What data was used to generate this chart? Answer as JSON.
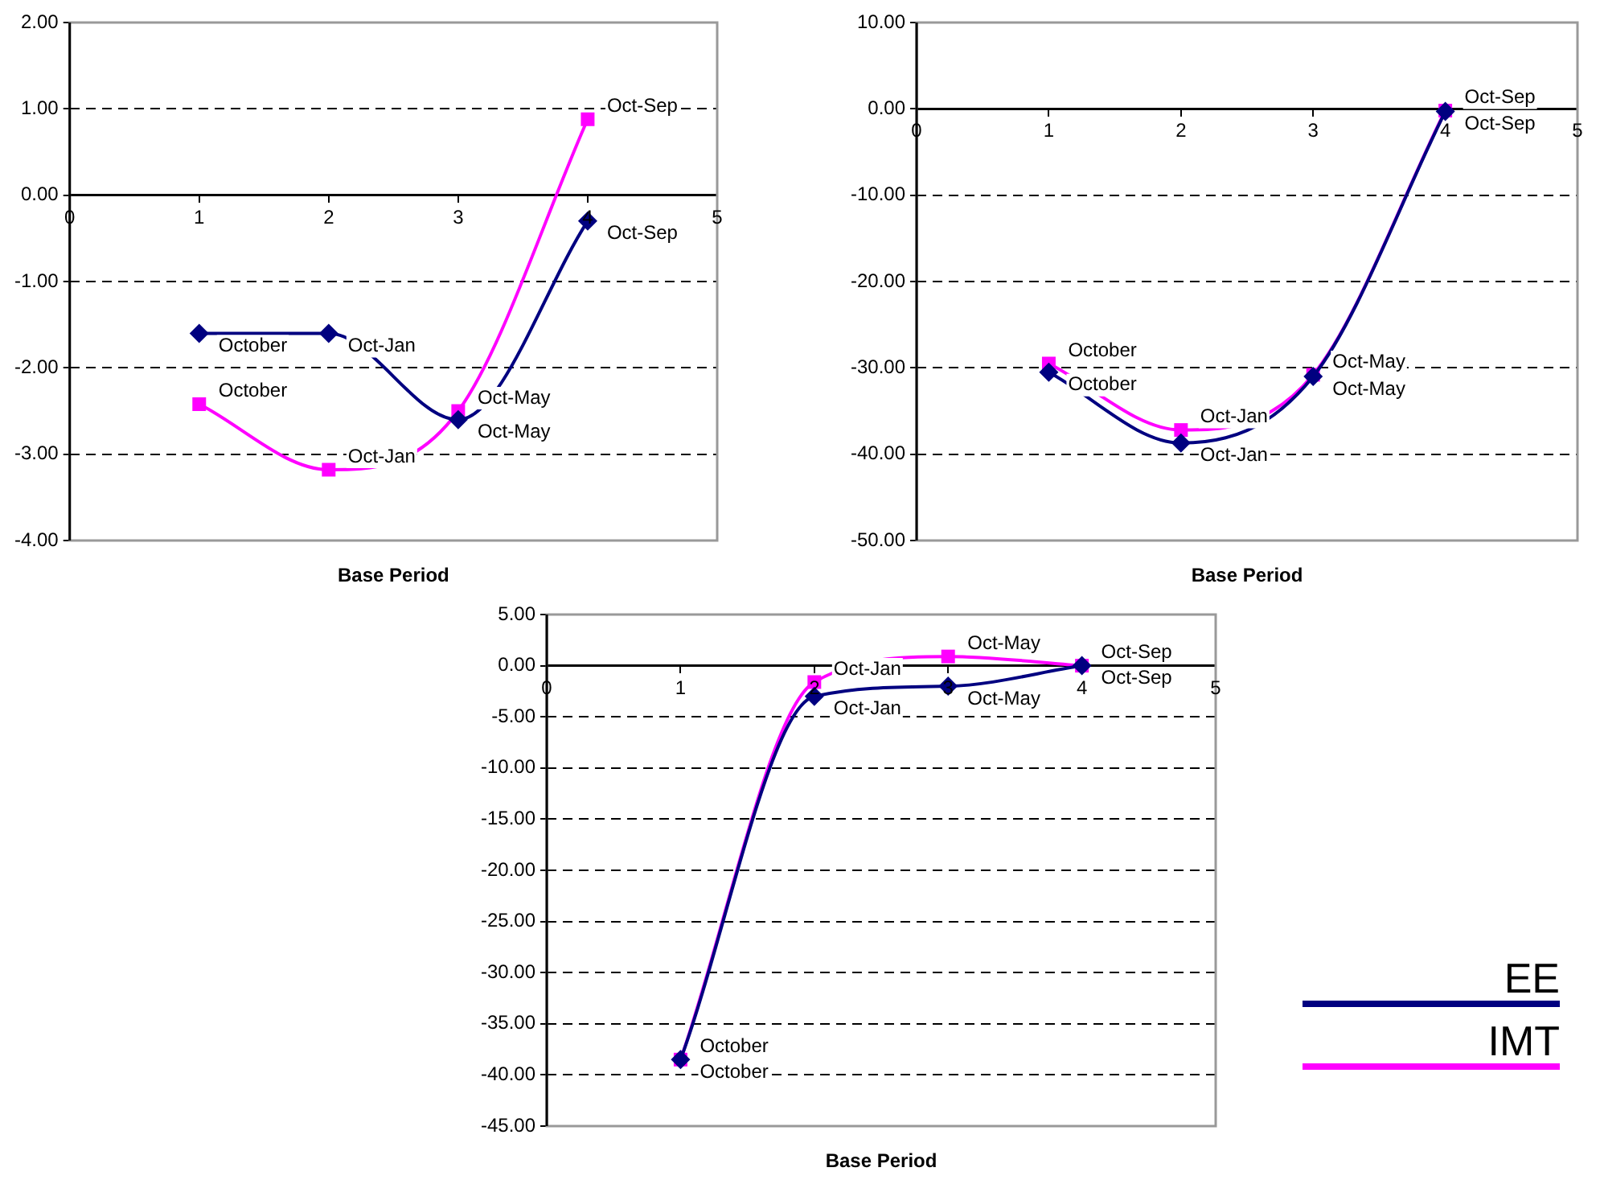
{
  "chart_data": [
    {
      "type": "line",
      "xlabel": "Base Period",
      "x": [
        1,
        2,
        3,
        4
      ],
      "xlim": [
        0,
        5
      ],
      "xticks": [
        0,
        1,
        2,
        3,
        4,
        5
      ],
      "ylim": [
        -4,
        2
      ],
      "yticks": [
        {
          "value": -4,
          "label": "-4.00"
        },
        {
          "value": -3,
          "label": "-3.00"
        },
        {
          "value": -2,
          "label": "-2.00"
        },
        {
          "value": -1,
          "label": "-1.00"
        },
        {
          "value": 0,
          "label": "0.00"
        },
        {
          "value": 1,
          "label": "1.00"
        },
        {
          "value": 2,
          "label": "2.00"
        }
      ],
      "grid": "y",
      "series": [
        {
          "color": "#000080",
          "marker": "diamond",
          "values": [
            -1.6,
            -1.6,
            -2.6,
            -0.3
          ],
          "value_labels": [
            "October",
            "Oct-Jan",
            "Oct-May",
            "Oct-Sep"
          ]
        },
        {
          "color": "#ff00ff",
          "marker": "square",
          "values": [
            -2.42,
            -3.18,
            -2.5,
            0.88
          ],
          "value_labels": [
            "October",
            "Oct-Jan",
            "Oct-May",
            "Oct-Sep"
          ]
        }
      ]
    },
    {
      "type": "line",
      "xlabel": "Base Period",
      "x": [
        1,
        2,
        3,
        4
      ],
      "xlim": [
        0,
        5
      ],
      "xticks": [
        0,
        1,
        2,
        3,
        4,
        5
      ],
      "ylim": [
        -50,
        10
      ],
      "yticks": [
        {
          "value": -50,
          "label": "-50.00"
        },
        {
          "value": -40,
          "label": "-40.00"
        },
        {
          "value": -30,
          "label": "-30.00"
        },
        {
          "value": -20,
          "label": "-20.00"
        },
        {
          "value": -10,
          "label": "-10.00"
        },
        {
          "value": 0,
          "label": "0.00"
        },
        {
          "value": 10,
          "label": "10.00"
        }
      ],
      "grid": "y",
      "series": [
        {
          "color": "#000080",
          "marker": "diamond",
          "values": [
            -30.5,
            -38.7,
            -31,
            -0.3
          ],
          "value_labels": [
            "October",
            "Oct-Jan",
            "Oct-May",
            "Oct-Sep"
          ]
        },
        {
          "color": "#ff00ff",
          "marker": "square",
          "values": [
            -29.5,
            -37.2,
            -30.8,
            -0.2
          ],
          "value_labels": [
            "October",
            "Oct-Jan",
            "Oct-May",
            "Oct-Sep"
          ]
        }
      ]
    },
    {
      "type": "line",
      "xlabel": "Base Period",
      "x": [
        1,
        2,
        3,
        4
      ],
      "xlim": [
        0,
        5
      ],
      "xticks": [
        0,
        1,
        2,
        3,
        4,
        5
      ],
      "ylim": [
        -45,
        5
      ],
      "yticks": [
        {
          "value": -45,
          "label": "-45.00"
        },
        {
          "value": -40,
          "label": "-40.00"
        },
        {
          "value": -35,
          "label": "-35.00"
        },
        {
          "value": -30,
          "label": "-30.00"
        },
        {
          "value": -25,
          "label": "-25.00"
        },
        {
          "value": -20,
          "label": "-20.00"
        },
        {
          "value": -15,
          "label": "-15.00"
        },
        {
          "value": -10,
          "label": "-10.00"
        },
        {
          "value": -5,
          "label": "-5.00"
        },
        {
          "value": 0,
          "label": "0.00"
        },
        {
          "value": 5,
          "label": "5.00"
        }
      ],
      "grid": "y",
      "legend": "bottom right",
      "series": [
        {
          "name": "EE",
          "color": "#000080",
          "marker": "diamond",
          "values": [
            -38.5,
            -3,
            -2,
            0
          ],
          "value_labels": [
            "October",
            "Oct-Jan",
            "Oct-May",
            "Oct-Sep"
          ]
        },
        {
          "name": "IMT",
          "color": "#ff00ff",
          "marker": "square",
          "values": [
            -38.5,
            -1.6,
            0.9,
            0
          ],
          "value_labels": [
            "October",
            "Oct-Jan",
            "Oct-May",
            "Oct-Sep"
          ]
        }
      ]
    }
  ]
}
